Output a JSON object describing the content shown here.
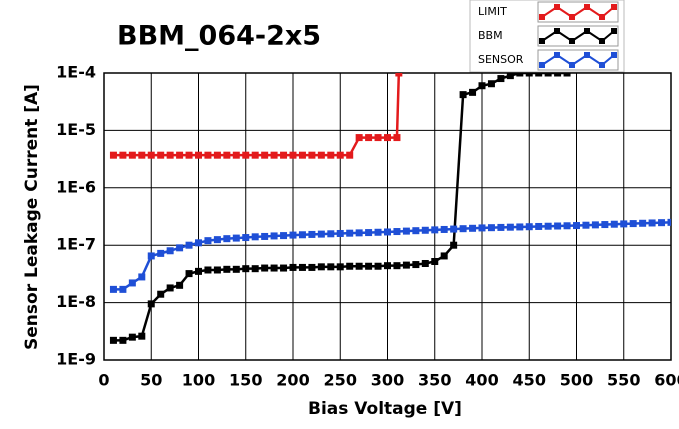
{
  "chart_data": {
    "type": "line",
    "title": "BBM_064-2x5",
    "x_label": "Bias Voltage [V]",
    "y_label": "Sensor Leakage Current [A]",
    "log_y": true,
    "grid": true,
    "legend_position": "top-right",
    "xlim": [
      0,
      600
    ],
    "xticks": [
      0,
      50,
      100,
      150,
      200,
      250,
      300,
      350,
      400,
      450,
      500,
      550,
      600
    ],
    "ylim": [
      1e-09,
      0.0001
    ],
    "yticks": [
      {
        "value": 1e-09,
        "label": "1E-9"
      },
      {
        "value": 1e-08,
        "label": "1E-8"
      },
      {
        "value": 1e-07,
        "label": "1E-7"
      },
      {
        "value": 1e-06,
        "label": "1E-6"
      },
      {
        "value": 1e-05,
        "label": "1E-5"
      },
      {
        "value": 0.0001,
        "label": "1E-4"
      }
    ],
    "series": [
      {
        "name": "LIMIT",
        "color": "#e31a1c",
        "x": [
          10,
          20,
          30,
          40,
          50,
          60,
          70,
          80,
          90,
          100,
          110,
          120,
          130,
          140,
          150,
          160,
          170,
          180,
          190,
          200,
          210,
          220,
          230,
          240,
          250,
          260,
          270,
          280,
          290,
          300,
          310,
          312
        ],
        "values": [
          3.7e-06,
          3.7e-06,
          3.7e-06,
          3.7e-06,
          3.7e-06,
          3.7e-06,
          3.7e-06,
          3.7e-06,
          3.7e-06,
          3.7e-06,
          3.7e-06,
          3.7e-06,
          3.7e-06,
          3.7e-06,
          3.7e-06,
          3.7e-06,
          3.7e-06,
          3.7e-06,
          3.7e-06,
          3.7e-06,
          3.7e-06,
          3.7e-06,
          3.7e-06,
          3.7e-06,
          3.7e-06,
          3.7e-06,
          7.5e-06,
          7.5e-06,
          7.5e-06,
          7.5e-06,
          7.5e-06,
          0.0001
        ]
      },
      {
        "name": "BBM",
        "color": "#000000",
        "x": [
          10,
          20,
          30,
          40,
          50,
          60,
          70,
          80,
          90,
          100,
          110,
          120,
          130,
          140,
          150,
          160,
          170,
          180,
          190,
          200,
          210,
          220,
          230,
          240,
          250,
          260,
          270,
          280,
          290,
          300,
          310,
          320,
          330,
          340,
          350,
          360,
          370,
          380,
          390,
          400,
          410,
          420,
          430,
          440,
          450,
          460,
          470,
          480,
          490
        ],
        "values": [
          2.2e-09,
          2.2e-09,
          2.5e-09,
          2.6e-09,
          9.5e-09,
          1.4e-08,
          1.8e-08,
          2e-08,
          3.2e-08,
          3.5e-08,
          3.7e-08,
          3.7e-08,
          3.8e-08,
          3.8e-08,
          3.9e-08,
          3.9e-08,
          4e-08,
          4e-08,
          4e-08,
          4.1e-08,
          4.1e-08,
          4.1e-08,
          4.2e-08,
          4.2e-08,
          4.2e-08,
          4.3e-08,
          4.3e-08,
          4.3e-08,
          4.3e-08,
          4.4e-08,
          4.4e-08,
          4.5e-08,
          4.6e-08,
          4.8e-08,
          5.2e-08,
          6.5e-08,
          1e-07,
          4.2e-05,
          4.6e-05,
          6e-05,
          6.5e-05,
          8e-05,
          9e-05,
          0.0001,
          0.0001,
          0.0001,
          0.0001,
          0.0001,
          0.0001
        ]
      },
      {
        "name": "SENSOR",
        "color": "#1f4fd6",
        "x": [
          10,
          20,
          30,
          40,
          50,
          60,
          70,
          80,
          90,
          100,
          110,
          120,
          130,
          140,
          150,
          160,
          170,
          180,
          190,
          200,
          210,
          220,
          230,
          240,
          250,
          260,
          270,
          280,
          290,
          300,
          310,
          320,
          330,
          340,
          350,
          360,
          370,
          380,
          390,
          400,
          410,
          420,
          430,
          440,
          450,
          460,
          470,
          480,
          490,
          500,
          510,
          520,
          530,
          540,
          550,
          560,
          570,
          580,
          590,
          600
        ],
        "values": [
          1.7e-08,
          1.7e-08,
          2.2e-08,
          2.8e-08,
          6.5e-08,
          7.2e-08,
          8e-08,
          9e-08,
          1e-07,
          1.1e-07,
          1.2e-07,
          1.25e-07,
          1.3e-07,
          1.33e-07,
          1.36e-07,
          1.4e-07,
          1.42e-07,
          1.45e-07,
          1.47e-07,
          1.5e-07,
          1.52e-07,
          1.54e-07,
          1.56e-07,
          1.58e-07,
          1.6e-07,
          1.62e-07,
          1.64e-07,
          1.66e-07,
          1.68e-07,
          1.7e-07,
          1.73e-07,
          1.76e-07,
          1.79e-07,
          1.82e-07,
          1.85e-07,
          1.88e-07,
          1.91e-07,
          1.94e-07,
          1.97e-07,
          2e-07,
          2.02e-07,
          2.04e-07,
          2.06e-07,
          2.08e-07,
          2.1e-07,
          2.12e-07,
          2.14e-07,
          2.16e-07,
          2.18e-07,
          2.2e-07,
          2.23e-07,
          2.26e-07,
          2.29e-07,
          2.32e-07,
          2.35e-07,
          2.38e-07,
          2.41e-07,
          2.44e-07,
          2.47e-07,
          2.5e-07
        ]
      }
    ]
  }
}
